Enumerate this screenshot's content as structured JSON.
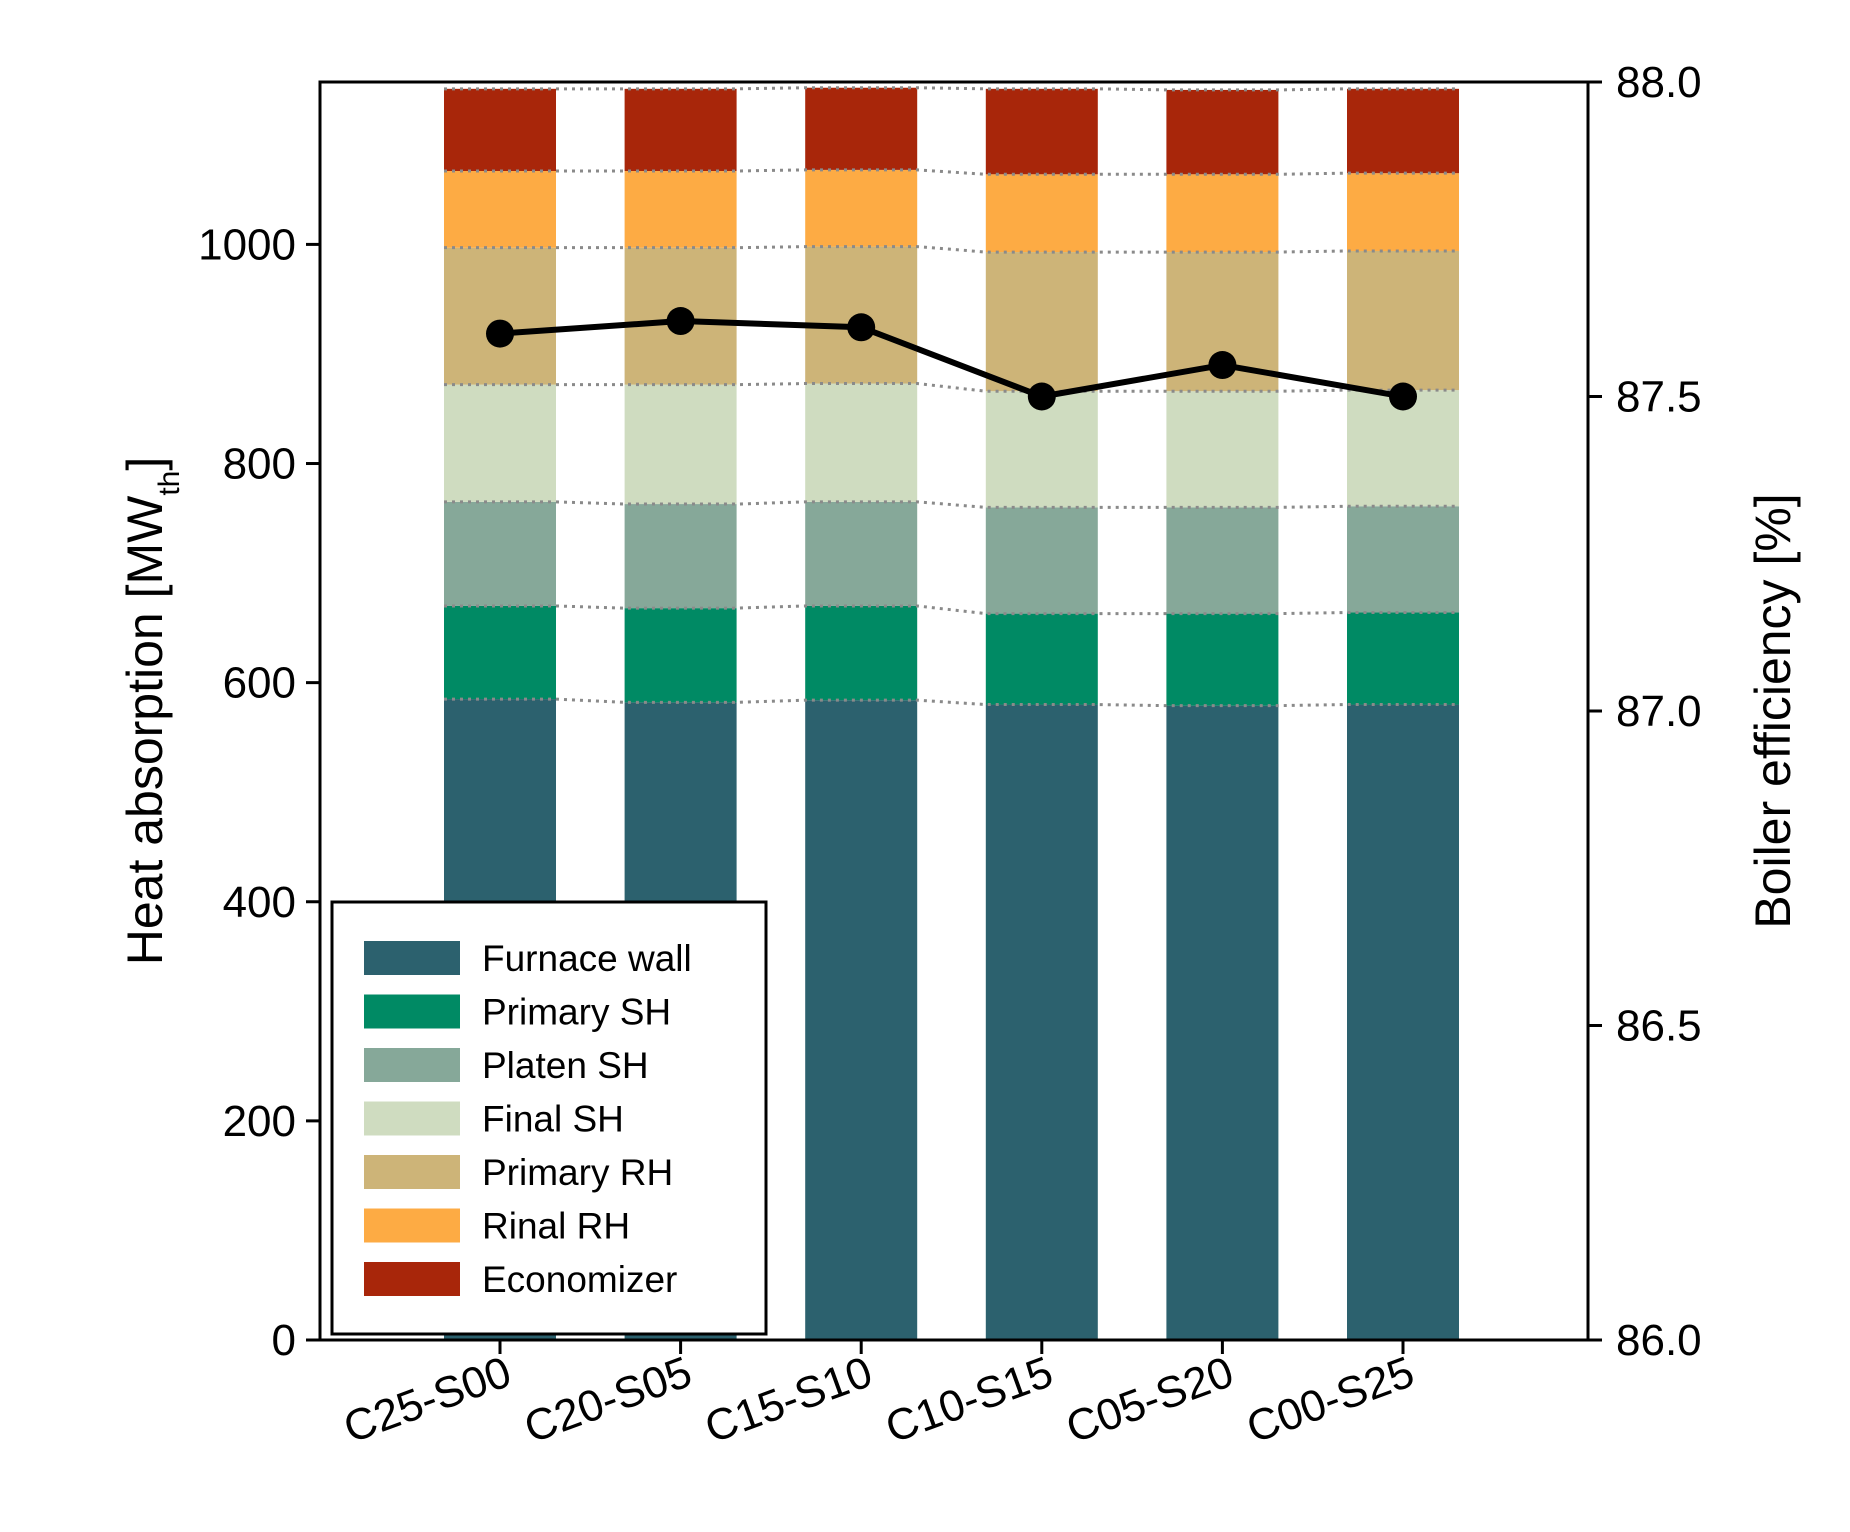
{
  "chart_data": {
    "type": "bar",
    "stacked": true,
    "categories": [
      "C25-S00",
      "C20-S05",
      "C15-S10",
      "C10-S15",
      "C05-S20",
      "C00-S25"
    ],
    "ylabel_main": "Heat absorption [MW",
    "ylabel_sub": "th",
    "ylabel_end": "]",
    "y2label": "Boiler efficiency [%]",
    "ylim": [
      0,
      1150
    ],
    "yticks": [
      0,
      200,
      400,
      600,
      800,
      1000
    ],
    "y2lim": [
      86.0,
      88.0
    ],
    "y2ticks": [
      "86.0",
      "86.5",
      "87.0",
      "87.5",
      "88.0"
    ],
    "legend_position": "lower-left",
    "series": [
      {
        "name": "Furnace wall",
        "color": "#2c616e",
        "values": [
          585,
          582,
          584,
          580,
          579,
          580
        ]
      },
      {
        "name": "Primary SH",
        "color": "#008a64",
        "values": [
          85,
          86,
          86,
          83,
          84,
          84
        ]
      },
      {
        "name": "Platen SH",
        "color": "#86a899",
        "values": [
          95,
          95,
          95,
          97,
          97,
          97
        ]
      },
      {
        "name": "Final SH",
        "color": "#cfdcc0",
        "values": [
          107,
          109,
          108,
          106,
          106,
          106
        ]
      },
      {
        "name": "Primary RH",
        "color": "#cdb478",
        "values": [
          125,
          125,
          125,
          127,
          127,
          127
        ]
      },
      {
        "name": "Rinal RH",
        "color": "#fdab44",
        "values": [
          70,
          70,
          70,
          71,
          71,
          71
        ]
      },
      {
        "name": "Economizer",
        "color": "#a8260a",
        "values": [
          75,
          75,
          75,
          78,
          77,
          77
        ]
      }
    ],
    "efficiency": {
      "name": "Boiler efficiency",
      "color": "#000000",
      "values": [
        87.6,
        87.62,
        87.61,
        87.5,
        87.55,
        87.5
      ]
    }
  }
}
